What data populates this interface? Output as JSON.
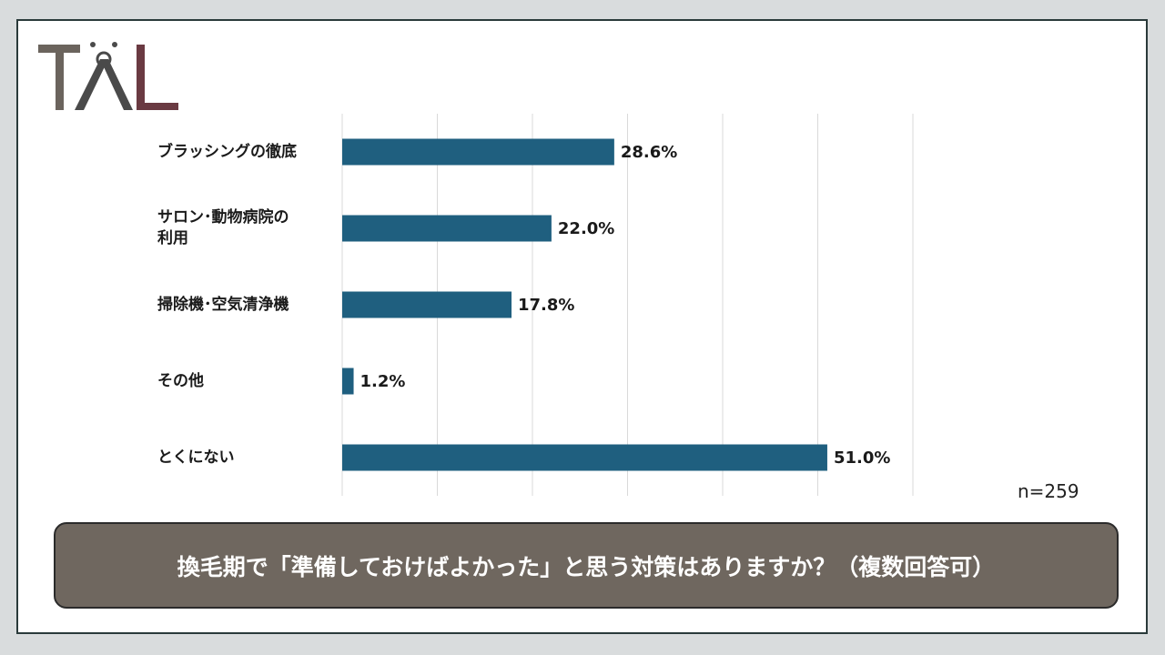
{
  "logo": {
    "text": "TAL",
    "colors": {
      "t": "#6b645d",
      "a": "#4a4a4a",
      "l": "#6a3a42"
    }
  },
  "chart_data": {
    "type": "bar",
    "orientation": "horizontal",
    "categories": [
      "ブラッシングの徹底",
      "サロン･動物病院の\n利用",
      "掃除機･空気清浄機",
      "その他",
      "とくにない"
    ],
    "values": [
      28.6,
      22.0,
      17.8,
      1.2,
      51.0
    ],
    "value_labels": [
      "28.6%",
      "22.0%",
      "17.8%",
      "1.2%",
      "51.0%"
    ],
    "xlim": [
      0,
      60
    ],
    "grid": "vertical",
    "bar_color": "#1f5f7f",
    "sample_size": "n=259",
    "title": "換毛期で「準備しておけばよかった」と思う対策はありますか？（複数回答可）"
  },
  "banner": {
    "background": "#6f675f"
  }
}
